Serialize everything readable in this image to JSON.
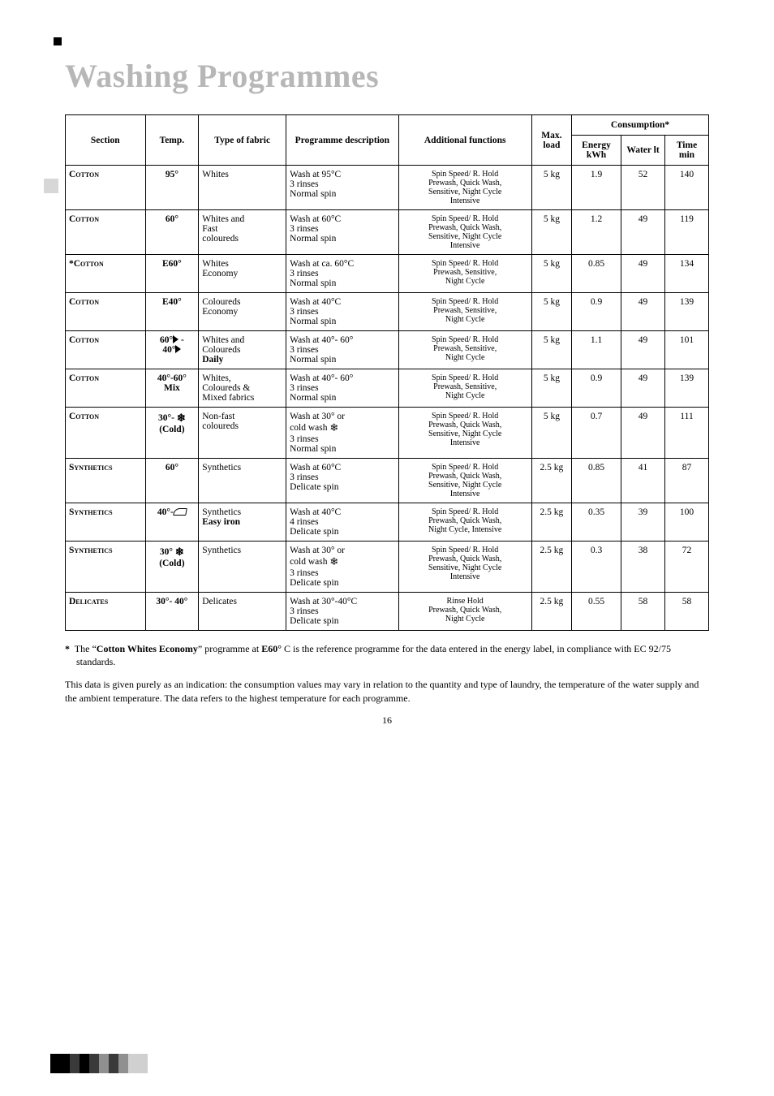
{
  "title": "Washing Programmes",
  "headers": {
    "section": "Section",
    "temp": "Temp.",
    "type": "Type of fabric",
    "programme": "Programme description",
    "additional": "Additional functions",
    "max": "Max. load",
    "consumption": "Consumption*",
    "energy": "Energy kWh",
    "water": "Water lt",
    "time": "Time min"
  },
  "rows": [
    {
      "section": "Cotton",
      "temp": "95°",
      "temp_icon": "",
      "fabric": "Whites",
      "prog": "Wash at 95°C\n3 rinses\nNormal spin",
      "func": "Spin Speed/ R. Hold\nPrewash, Quick Wash,\nSensitive, Night Cycle\nIntensive",
      "load": "5 kg",
      "energy": "1.9",
      "water": "52",
      "time": "140"
    },
    {
      "section": "Cotton",
      "temp": "60°",
      "temp_icon": "",
      "fabric": "Whites and\nFast\ncoloureds",
      "prog": "Wash at 60°C\n3 rinses\nNormal spin",
      "func": "Spin Speed/ R. Hold\nPrewash, Quick Wash,\nSensitive, Night Cycle\nIntensive",
      "load": "5 kg",
      "energy": "1.2",
      "water": "49",
      "time": "119"
    },
    {
      "section": "*Cotton",
      "temp": "E60°",
      "temp_icon": "",
      "fabric": "Whites\nEconomy",
      "prog": "Wash at ca. 60°C\n3 rinses\nNormal spin",
      "func": "Spin Speed/ R. Hold\nPrewash, Sensitive,\nNight Cycle",
      "load": "5 kg",
      "energy": "0.85",
      "water": "49",
      "time": "134"
    },
    {
      "section": "Cotton",
      "temp": "E40°",
      "temp_icon": "",
      "fabric": "Coloureds\nEconomy",
      "prog": "Wash at 40°C\n3 rinses\nNormal spin",
      "func": "Spin Speed/ R. Hold\nPrewash, Sensitive,\nNight Cycle",
      "load": "5 kg",
      "energy": "0.9",
      "water": "49",
      "time": "139"
    },
    {
      "section": "Cotton",
      "temp": "60° ▶ -\n40° ▶",
      "temp_icon": "tri",
      "fabric": "Whites and\nColoureds\nDaily",
      "prog": "Wash at 40°- 60°\n3 rinses\nNormal spin",
      "func": "Spin Speed/ R. Hold\nPrewash, Sensitive,\nNight Cycle",
      "load": "5 kg",
      "energy": "1.1",
      "water": "49",
      "time": "101"
    },
    {
      "section": "Cotton",
      "temp": "40°-60°\nMix",
      "temp_icon": "",
      "fabric": "Whites,\nColoureds &\nMixed fabrics",
      "prog": "Wash at 40°- 60°\n3 rinses\nNormal spin",
      "func": "Spin Speed/ R. Hold\nPrewash, Sensitive,\nNight Cycle",
      "load": "5 kg",
      "energy": "0.9",
      "water": "49",
      "time": "139"
    },
    {
      "section": "Cotton",
      "temp": "30°- ❄\n(Cold)",
      "temp_icon": "snow",
      "fabric": "Non-fast\ncoloureds",
      "prog": "Wash at 30° or\ncold wash ❄\n3 rinses\nNormal spin",
      "func": "Spin Speed/ R. Hold\nPrewash, Quick Wash,\nSensitive, Night Cycle\nIntensive",
      "load": "5 kg",
      "energy": "0.7",
      "water": "49",
      "time": "111"
    },
    {
      "section": "Synthetics",
      "temp": "60°",
      "temp_icon": "",
      "fabric": "Synthetics",
      "prog": "Wash at 60°C\n3 rinses\nDelicate spin",
      "func": "Spin Speed/ R. Hold\nPrewash, Quick Wash,\nSensitive, Night Cycle\nIntensive",
      "load": "2.5 kg",
      "energy": "0.85",
      "water": "41",
      "time": "87"
    },
    {
      "section": "Synthetics",
      "temp": "40°- ⌂",
      "temp_icon": "iron",
      "fabric": "Synthetics\nEasy iron",
      "prog": "Wash at 40°C\n4 rinses\nDelicate spin",
      "func": "Spin Speed/ R. Hold\nPrewash, Quick Wash,\nNight Cycle, Intensive",
      "load": "2.5 kg",
      "energy": "0.35",
      "water": "39",
      "time": "100"
    },
    {
      "section": "Synthetics",
      "temp": "30° ❄\n(Cold)",
      "temp_icon": "snow",
      "fabric": "Synthetics",
      "prog": "Wash at 30° or\ncold wash ❄\n3 rinses\nDelicate spin",
      "func": "Spin Speed/ R. Hold\nPrewash, Quick Wash,\nSensitive, Night Cycle\nIntensive",
      "load": "2.5 kg",
      "energy": "0.3",
      "water": "38",
      "time": "72"
    },
    {
      "section": "Delicates",
      "temp": "30°- 40°",
      "temp_icon": "",
      "fabric": "Delicates",
      "prog": "Wash at 30°-40°C\n3 rinses\nDelicate spin",
      "func": "Rinse Hold\nPrewash, Quick Wash,\nNight Cycle",
      "load": "2.5 kg",
      "energy": "0.55",
      "water": "58",
      "time": "58"
    }
  ],
  "footnote_lead": "*",
  "footnote_a": "The “",
  "footnote_b": "Cotton Whites Economy",
  "footnote_c": "” programme at ",
  "footnote_d": "E60°",
  "footnote_e": " C is the reference programme for the data entered in the energy label, in compliance with EC 92/75 standards.",
  "note": "This data is given purely as an indication: the consumption values may vary in relation to the quantity and type of laundry, the temperature of the water supply and the ambient temperature. The data refers to the highest temperature for each programme.",
  "page": "16",
  "col_widths": {
    "section": "84",
    "temp": "56",
    "fabric": "92",
    "prog": "118",
    "func": "140",
    "load": "42",
    "energy": "52",
    "water": "46",
    "time": "46"
  },
  "colors": {
    "title": "#b7b7b7",
    "border": "#000000",
    "bg": "#ffffff",
    "text": "#000000"
  }
}
